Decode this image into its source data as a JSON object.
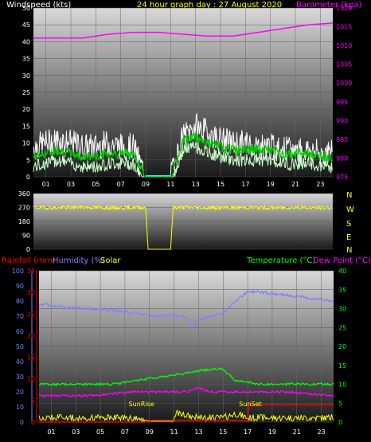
{
  "header": {
    "left_title": "Windspeed (kts)",
    "center_title": "24 hour graph day : 27 August 2020",
    "right_title": "Barometer (kpa)"
  },
  "colors": {
    "windspeed": "#ffffff",
    "wind_average": "#00cc00",
    "wind_light": "#ccffcc",
    "barometer": "#ff00ff",
    "direction": "#ffff00",
    "rainfall": "#ff0000",
    "humidity": "#8080ff",
    "solar": "#ffff00",
    "temperature": "#00ff00",
    "dew_point": "#ff00ff"
  },
  "chart_data": [
    {
      "type": "line",
      "name_left_axis": "Windspeed (kts)",
      "name_right_axis": "Barometer (kpa)",
      "x_ticks": [
        "01",
        "03",
        "05",
        "07",
        "09",
        "11",
        "13",
        "15",
        "17",
        "19",
        "21",
        "23"
      ],
      "x_hours": [
        1,
        3,
        5,
        7,
        9,
        11,
        13,
        15,
        17,
        19,
        21,
        23
      ],
      "xlim": [
        0,
        24
      ],
      "ylim_left": [
        0,
        50
      ],
      "yticks_left": [
        0,
        5,
        10,
        15,
        20,
        25,
        30,
        35,
        40,
        45,
        50
      ],
      "ylim_right": [
        975,
        1020
      ],
      "yticks_right": [
        975,
        980,
        985,
        990,
        995,
        1000,
        1005,
        1010,
        1015,
        1020
      ],
      "gap_hours": [
        9,
        11
      ],
      "series": [
        {
          "name": "Windspeed",
          "axis": "left",
          "hours": [
            0,
            1,
            2,
            3,
            4,
            5,
            6,
            7,
            8,
            9,
            11,
            12,
            13,
            14,
            15,
            16,
            17,
            18,
            19,
            20,
            21,
            22,
            23,
            24
          ],
          "values": [
            9,
            10,
            11,
            10,
            9,
            9,
            10,
            9,
            9,
            0,
            0,
            12,
            15,
            13,
            11,
            10,
            10,
            9,
            9,
            8,
            8,
            8,
            7,
            7
          ]
        },
        {
          "name": "Wind average",
          "axis": "left",
          "hours": [
            0,
            1,
            2,
            3,
            4,
            5,
            6,
            7,
            8,
            9,
            11,
            12,
            13,
            14,
            15,
            16,
            17,
            18,
            19,
            20,
            21,
            22,
            23,
            24
          ],
          "values": [
            6,
            7,
            8,
            7,
            6,
            6,
            7,
            7,
            7,
            0,
            0,
            11,
            12,
            10,
            9,
            8,
            8,
            8,
            8,
            7,
            7,
            7,
            6,
            6
          ]
        },
        {
          "name": "Barometer",
          "axis": "right",
          "hours": [
            0,
            2,
            4,
            6,
            8,
            10,
            12,
            14,
            16,
            18,
            20,
            22,
            24
          ],
          "values": [
            1012,
            1012,
            1012,
            1013,
            1013.5,
            1013.5,
            1013,
            1012.5,
            1012.5,
            1013.5,
            1014.5,
            1015.5,
            1016
          ]
        }
      ]
    },
    {
      "type": "line",
      "name": "Wind direction",
      "ylim": [
        0,
        360
      ],
      "yticks": [
        0,
        90,
        180,
        270,
        360
      ],
      "compass": [
        "N",
        "W",
        "S",
        "E",
        "N"
      ],
      "series": [
        {
          "name": "Direction",
          "hours": [
            0,
            2,
            4,
            6,
            8,
            9,
            9.2,
            11,
            11.2,
            13,
            15,
            17,
            19,
            21,
            23,
            24
          ],
          "values": [
            270,
            268,
            272,
            268,
            270,
            270,
            0,
            0,
            270,
            270,
            268,
            270,
            268,
            270,
            268,
            270
          ]
        }
      ]
    },
    {
      "type": "line",
      "left_labels": [
        "Rainfall (mm)",
        "Humidity (%)",
        "Solar"
      ],
      "right_labels": [
        "Temperature (°C)",
        "Dew Point (°C)"
      ],
      "x_ticks": [
        "01",
        "03",
        "05",
        "07",
        "09",
        "11",
        "13",
        "15",
        "17",
        "19",
        "21",
        "23"
      ],
      "ylim_humidity": [
        0,
        100
      ],
      "yticks_humidity": [
        0,
        10,
        20,
        30,
        40,
        50,
        60,
        70,
        80,
        90,
        100
      ],
      "ylim_rain": [
        0,
        35
      ],
      "yticks_rain": [
        0,
        5,
        10,
        15,
        20,
        25,
        30,
        35
      ],
      "ylim_temp": [
        0,
        40
      ],
      "yticks_temp": [
        0,
        5,
        10,
        15,
        20,
        25,
        30,
        35,
        40
      ],
      "annotations": [
        {
          "label": "SunRise",
          "hour": 7.3
        },
        {
          "label": "SunSet",
          "hour": 16.3
        }
      ],
      "series": [
        {
          "name": "Humidity",
          "axis": "humidity",
          "hours": [
            0,
            2,
            4,
            6,
            8,
            9,
            11,
            12,
            12.5,
            13,
            14,
            15,
            16,
            17,
            18,
            20,
            22,
            24
          ],
          "values": [
            78,
            76,
            75,
            74,
            72,
            70,
            70,
            70,
            63,
            68,
            70,
            72,
            80,
            86,
            86,
            84,
            82,
            80
          ]
        },
        {
          "name": "Temperature",
          "axis": "temp",
          "hours": [
            0,
            2,
            4,
            6,
            8,
            10,
            12,
            14,
            15,
            16,
            18,
            20,
            22,
            24
          ],
          "values": [
            10,
            10,
            10,
            10,
            11,
            12,
            13,
            14,
            14,
            11,
            10,
            10,
            10,
            10
          ]
        },
        {
          "name": "Dew Point",
          "axis": "temp",
          "hours": [
            0,
            2,
            4,
            6,
            8,
            10,
            12,
            13,
            14,
            16,
            18,
            20,
            22,
            24
          ],
          "values": [
            7,
            7,
            7,
            7.5,
            8,
            8,
            8,
            9,
            8,
            8,
            8,
            8,
            7.5,
            7
          ]
        },
        {
          "name": "Rainfall",
          "axis": "rain",
          "hours": [
            0,
            9,
            9.1,
            11,
            11.2,
            16,
            16.1,
            17,
            17.1,
            24
          ],
          "values": [
            0,
            0,
            0.4,
            0.4,
            0.4,
            0.4,
            0.4,
            0.4,
            4,
            4
          ]
        },
        {
          "name": "Solar",
          "axis": "rain",
          "hours": [
            0,
            2,
            4,
            6,
            8,
            9,
            11,
            11.2,
            13,
            15,
            16,
            17,
            18,
            20,
            22,
            24
          ],
          "values": [
            1,
            1,
            1,
            1,
            1,
            0.2,
            0.2,
            2,
            1,
            1,
            2,
            1,
            1,
            1,
            1,
            1
          ]
        }
      ]
    }
  ]
}
